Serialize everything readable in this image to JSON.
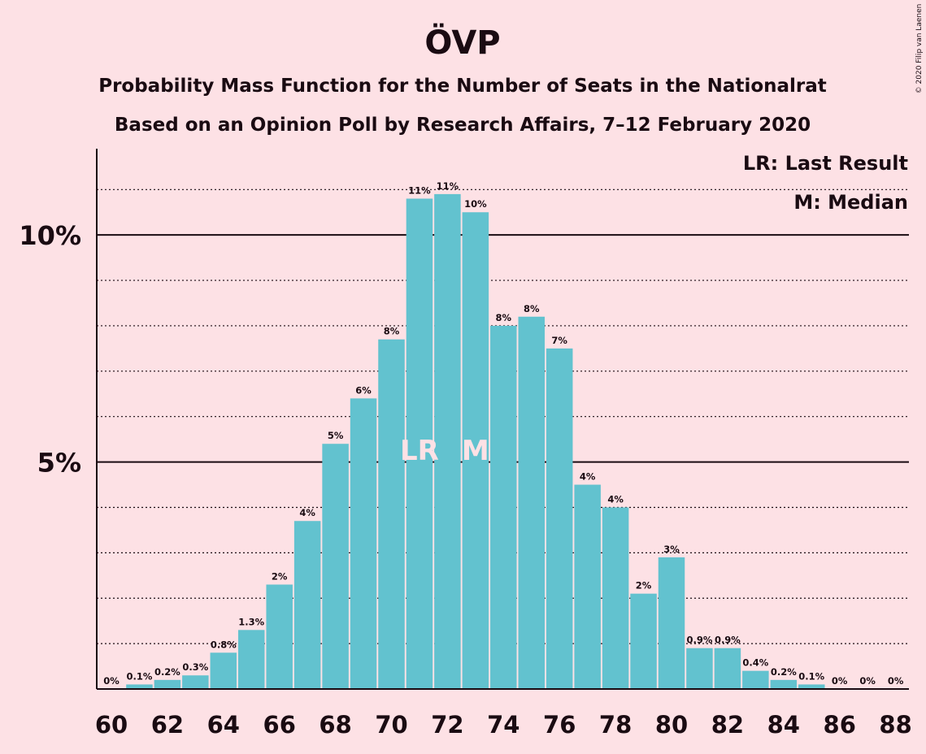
{
  "title": "ÖVP",
  "subtitle_line1": "Probability Mass Function for the Number of Seats in the Nationalrat",
  "subtitle_line2": "Based on an Opinion Poll by Research Affairs, 7–12 February 2020",
  "copyright": "© 2020 Filip van Laenen",
  "legend": {
    "last_result": "LR: Last Result",
    "median": "M: Median"
  },
  "colors": {
    "background": "#fde1e5",
    "bar": "#62c2cf",
    "text": "#1a0b12"
  },
  "chart_data": {
    "type": "bar",
    "title": "ÖVP",
    "xlabel": "",
    "ylabel": "",
    "ylim": [
      0,
      11.9
    ],
    "x": [
      60,
      61,
      62,
      63,
      64,
      65,
      66,
      67,
      68,
      69,
      70,
      71,
      72,
      73,
      74,
      75,
      76,
      77,
      78,
      79,
      80,
      81,
      82,
      83,
      84,
      85,
      86,
      87,
      88
    ],
    "values": [
      0,
      0.1,
      0.2,
      0.3,
      0.8,
      1.3,
      2.3,
      3.7,
      5.4,
      6.4,
      7.7,
      10.8,
      10.9,
      10.5,
      8.0,
      8.2,
      7.5,
      4.5,
      4.0,
      2.1,
      2.9,
      0.9,
      0.9,
      0.4,
      0.2,
      0.1,
      0,
      0,
      0
    ],
    "data_labels": [
      "0%",
      "0.1%",
      "0.2%",
      "0.3%",
      "0.8%",
      "1.3%",
      "2%",
      "4%",
      "5%",
      "6%",
      "8%",
      "11%",
      "11%",
      "10%",
      "8%",
      "8%",
      "7%",
      "4%",
      "4%",
      "2%",
      "3%",
      "0.9%",
      "0.9%",
      "0.4%",
      "0.2%",
      "0.1%",
      "0%",
      "0%",
      "0%"
    ],
    "xtick_labels": [
      "60",
      "62",
      "64",
      "66",
      "68",
      "70",
      "72",
      "74",
      "76",
      "78",
      "80",
      "82",
      "84",
      "86",
      "88"
    ],
    "yticks": [
      {
        "value": 5,
        "label": "5%"
      },
      {
        "value": 10,
        "label": "10%"
      }
    ],
    "minor_gridlines": [
      1,
      2,
      3,
      4,
      6,
      7,
      8,
      9,
      11
    ],
    "markers": [
      {
        "x": 71,
        "label": "LR"
      },
      {
        "x": 73,
        "label": "M"
      }
    ],
    "grid": true,
    "legend_position": "top-right"
  }
}
